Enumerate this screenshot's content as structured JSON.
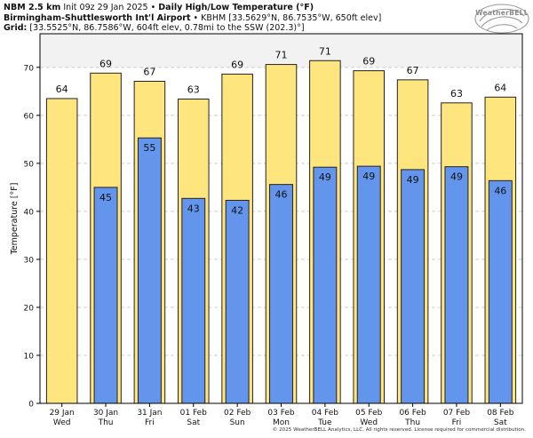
{
  "header": {
    "model": "NBM 2.5 km",
    "init": "Init 09z 29 Jan 2025",
    "sep": "•",
    "product": "Daily High/Low Temperature (°F)",
    "station_name": "Birmingham-Shuttlesworth Int'l Airport",
    "station_info": "KBHM [33.5629°N, 86.7535°W, 650ft elev]",
    "grid_label": "Grid:",
    "grid_info": "[33.5525°N, 86.7586°W, 604ft elev, 0.78mi to the SSW (202.3)°]"
  },
  "logo": {
    "text": "WeatherBELL"
  },
  "footer": {
    "copyright": "© 2025 WeatherBELL Analytics, LLC. All rights reserved. License required for commercial distribution."
  },
  "colors": {
    "high": "#FFE57E",
    "low": "#6495ED",
    "bar_edge": "#222222",
    "grid": "#cccccc",
    "top_band": "#f2f2f2"
  },
  "chart_data": {
    "type": "bar",
    "ylabel": "Temperature [°F]",
    "ylim": [
      0,
      77
    ],
    "yticks": [
      0,
      10,
      20,
      30,
      40,
      50,
      60,
      70
    ],
    "grid": true,
    "categories": [
      {
        "date": "29 Jan",
        "day": "Wed"
      },
      {
        "date": "30 Jan",
        "day": "Thu"
      },
      {
        "date": "31 Jan",
        "day": "Fri"
      },
      {
        "date": "01 Feb",
        "day": "Sat"
      },
      {
        "date": "02 Feb",
        "day": "Sun"
      },
      {
        "date": "03 Feb",
        "day": "Mon"
      },
      {
        "date": "04 Feb",
        "day": "Tue"
      },
      {
        "date": "05 Feb",
        "day": "Wed"
      },
      {
        "date": "06 Feb",
        "day": "Thu"
      },
      {
        "date": "07 Feb",
        "day": "Fri"
      },
      {
        "date": "08 Feb",
        "day": "Sat"
      }
    ],
    "series": [
      {
        "values": [
          63.5,
          68.8,
          67.1,
          63.4,
          68.6,
          70.6,
          71.4,
          69.3,
          67.4,
          62.6,
          63.8
        ],
        "labels": [
          "64",
          "69",
          "67",
          "63",
          "69",
          "71",
          "71",
          "69",
          "67",
          "63",
          "64"
        ]
      },
      {
        "values": [
          null,
          45.0,
          55.3,
          42.7,
          42.3,
          45.6,
          49.2,
          49.4,
          48.7,
          49.3,
          46.4
        ],
        "labels": [
          null,
          "45",
          "55",
          "43",
          "42",
          "46",
          "49",
          "49",
          "49",
          "49",
          "46"
        ]
      }
    ]
  }
}
